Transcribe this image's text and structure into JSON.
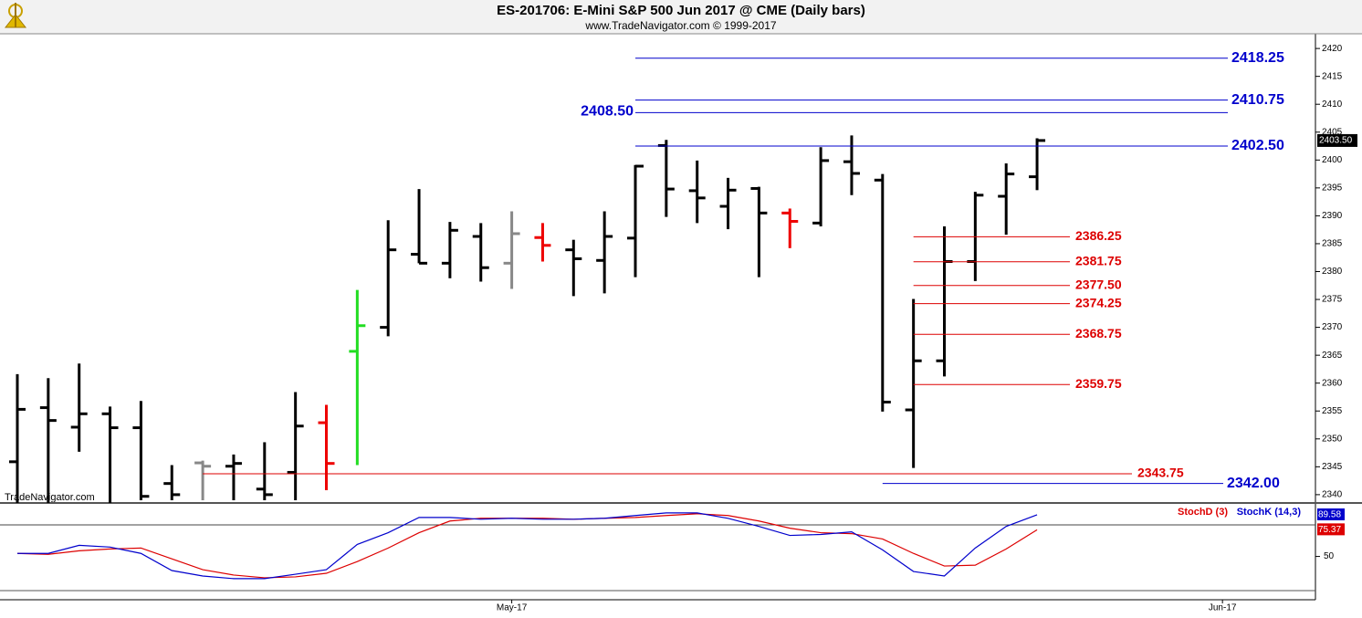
{
  "chart_data": [
    {
      "type": "ohlc",
      "title": "ES-201706:  E-Mini S&P 500 Jun 2017 @ CME  (Daily bars)",
      "subtitle": "www.TradeNavigator.com © 1999-2017",
      "watermark": "TradeNavigator.com",
      "categories": [
        null,
        null,
        null,
        null,
        null,
        null,
        null,
        null,
        null,
        null,
        null,
        null,
        null,
        null,
        null,
        null,
        null,
        null,
        null,
        null,
        null,
        null,
        null,
        null,
        null,
        null,
        null,
        null,
        null,
        null,
        null,
        null,
        null,
        null
      ],
      "open": [
        2345.9,
        2355.6,
        2352.1,
        2354.5,
        2352.0,
        2342.0,
        2345.7,
        2345.1,
        2341.0,
        2344.0,
        2352.9,
        2365.7,
        2370.0,
        2383.1,
        2381.5,
        2386.3,
        2381.5,
        2386.1,
        2383.9,
        2382.0,
        2386.0,
        2402.6,
        2394.5,
        2391.7,
        2394.9,
        2390.5,
        2388.7,
        2399.7,
        2396.4,
        2355.2,
        2364.0,
        2381.8,
        2393.5,
        2397.0
      ],
      "high": [
        2361.6,
        2360.9,
        2363.5,
        2355.8,
        2356.8,
        2345.3,
        2346.1,
        2347.2,
        2349.4,
        2358.4,
        2356.1,
        2376.7,
        2389.2,
        2394.8,
        2388.9,
        2388.7,
        2390.8,
        2388.7,
        2385.7,
        2390.8,
        2399.1,
        2403.6,
        2399.9,
        2396.8,
        2395.2,
        2391.3,
        2402.3,
        2404.4,
        2397.5,
        2375.1,
        2388.1,
        2394.3,
        2399.4,
        2403.9
      ],
      "low": [
        2338.0,
        2338.0,
        2347.7,
        2338.0,
        2339.0,
        2339.0,
        2339.0,
        2339.0,
        2339.0,
        2339.0,
        2340.8,
        2345.3,
        2368.4,
        2381.5,
        2378.8,
        2378.2,
        2376.9,
        2381.8,
        2375.6,
        2376.1,
        2379.0,
        2389.8,
        2388.7,
        2387.6,
        2379.0,
        2384.2,
        2388.1,
        2393.7,
        2354.9,
        2344.8,
        2361.2,
        2378.3,
        2386.6,
        2394.6
      ],
      "close": [
        2355.3,
        2353.3,
        2354.5,
        2352.0,
        2339.7,
        2340.0,
        2345.1,
        2345.6,
        2340.0,
        2352.3,
        2345.6,
        2370.3,
        2383.9,
        2381.5,
        2387.4,
        2380.7,
        2386.8,
        2384.7,
        2382.3,
        2386.3,
        2398.9,
        2394.8,
        2393.2,
        2394.6,
        2390.5,
        2389.0,
        2399.9,
        2397.6,
        2356.6,
        2364.0,
        2381.8,
        2393.7,
        2397.5,
        2403.5
      ],
      "colors": [
        "#000000",
        "#000000",
        "#000000",
        "#000000",
        "#000000",
        "#000000",
        "#888888",
        "#000000",
        "#000000",
        "#000000",
        "#ee0000",
        "#22dd22",
        "#000000",
        "#000000",
        "#000000",
        "#000000",
        "#888888",
        "#ee0000",
        "#000000",
        "#000000",
        "#000000",
        "#000000",
        "#000000",
        "#000000",
        "#000000",
        "#ee0000",
        "#000000",
        "#000000",
        "#000000",
        "#000000",
        "#000000",
        "#000000",
        "#000000",
        "#000000"
      ],
      "last_label": "2403.50",
      "ylim": [
        2339,
        2421
      ],
      "yticks": [
        2340,
        2345,
        2350,
        2355,
        2360,
        2365,
        2370,
        2375,
        2380,
        2385,
        2390,
        2395,
        2400,
        2405,
        2410,
        2415,
        2420
      ],
      "levels": [
        {
          "value": 2418.25,
          "label": "2418.25",
          "color": "#0000cc"
        },
        {
          "value": 2410.75,
          "label": "2410.75",
          "color": "#0000cc"
        },
        {
          "value": 2408.5,
          "label": "2408.50",
          "color": "#0000cc"
        },
        {
          "value": 2402.5,
          "label": "2402.50",
          "color": "#0000cc"
        },
        {
          "value": 2342,
          "label": "2342.00",
          "color": "#0000cc"
        },
        {
          "value": 2386.25,
          "label": "2386.25",
          "color": "#dd0000"
        },
        {
          "value": 2381.75,
          "label": "2381.75",
          "color": "#dd0000"
        },
        {
          "value": 2377.5,
          "label": "2377.50",
          "color": "#dd0000"
        },
        {
          "value": 2374.25,
          "label": "2374.25",
          "color": "#dd0000"
        },
        {
          "value": 2368.75,
          "label": "2368.75",
          "color": "#dd0000"
        },
        {
          "value": 2359.75,
          "label": "2359.75",
          "color": "#dd0000"
        },
        {
          "value": 2343.75,
          "label": "2343.75",
          "color": "#dd0000"
        }
      ]
    },
    {
      "type": "line",
      "categories": [
        null,
        null,
        null,
        null,
        null,
        null,
        null,
        null,
        null,
        null,
        null,
        null,
        null,
        null,
        null,
        null,
        null,
        null,
        null,
        null,
        null,
        null,
        null,
        null,
        null,
        null,
        null,
        null,
        null,
        null,
        null,
        null,
        null,
        null
      ],
      "series": [
        {
          "name": "StochD (3)",
          "color": "#dd0000",
          "last_label": "75.37",
          "values": [
            52.9,
            52.0,
            55.4,
            57.1,
            58.0,
            47.7,
            37.4,
            32.3,
            29.7,
            30.6,
            34.0,
            45.1,
            58.0,
            72.6,
            83.7,
            86.3,
            86.3,
            86.3,
            85.4,
            86.3,
            87.1,
            88.9,
            90.6,
            88.9,
            83.7,
            76.9,
            72.6,
            71.7,
            66.6,
            52.9,
            40.9,
            41.7,
            57.1,
            75.37
          ]
        },
        {
          "name": "StochK (14,3)",
          "color": "#0000cc",
          "last_label": "89.58",
          "values": [
            52.9,
            52.9,
            60.6,
            58.9,
            52.9,
            36.6,
            31.4,
            28.9,
            28.9,
            33.1,
            37.4,
            61.4,
            72.6,
            87.1,
            87.1,
            85.4,
            86.3,
            85.4,
            85.4,
            86.3,
            88.9,
            91.4,
            91.4,
            86.3,
            78.6,
            70.0,
            70.9,
            73.4,
            56.3,
            35.7,
            31.4,
            58.0,
            78.6,
            89.58
          ]
        }
      ],
      "ylim": [
        17.5,
        100
      ],
      "yticks": [
        50
      ],
      "levels": [
        80
      ],
      "xticks": [
        {
          "value": 16,
          "label": "May-17"
        },
        {
          "value": 39,
          "label": "Jun-17"
        }
      ]
    }
  ]
}
